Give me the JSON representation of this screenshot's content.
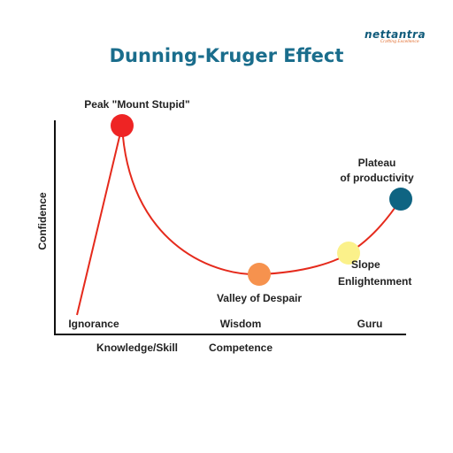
{
  "logo": {
    "main": "nettantra",
    "tagline": "Crafting Excellence"
  },
  "title": "Dunning-Kruger Effect",
  "axis": {
    "y_label": "Confidence",
    "x_label_left": "Knowledge/Skill",
    "x_label_right": "Competence"
  },
  "x_stages": [
    "Ignorance",
    "Wisdom",
    "Guru"
  ],
  "points": {
    "peak": {
      "label": "Peak \"Mount Stupid\"",
      "color": "#ee2424"
    },
    "valley": {
      "label": "Valley of Despair",
      "color": "#f6924e"
    },
    "slope": {
      "line1": "Slope",
      "line2": "Enlightenment",
      "color": "#fbf18a"
    },
    "plateau": {
      "line1": "Plateau",
      "line2": "of productivity",
      "color": "#0f6482"
    }
  },
  "colors": {
    "curve": "#e52a1c",
    "axis": "#111111",
    "title": "#1a6d8c"
  }
}
